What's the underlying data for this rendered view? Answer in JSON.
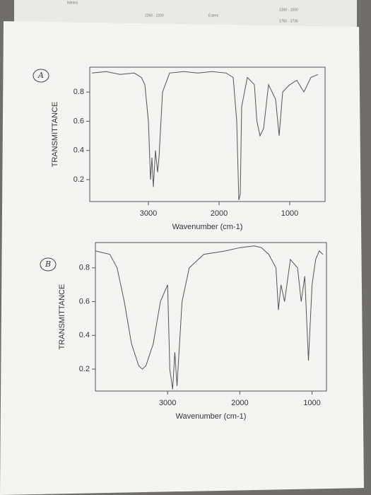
{
  "background_notes": [
    "Nitriles",
    "2260 - 2200",
    "Esters",
    "1750 - 1735",
    "1300 - 1000"
  ],
  "chart_data": [
    {
      "type": "line",
      "panel_label": "A",
      "xlabel": "Wavenumber (cm-1)",
      "ylabel": "TRANSMITTANCE",
      "color": "#555555",
      "x": [
        3800,
        3600,
        3400,
        3200,
        3100,
        3050,
        3000,
        2970,
        2950,
        2930,
        2900,
        2870,
        2850,
        2800,
        2700,
        2500,
        2300,
        2100,
        1900,
        1800,
        1750,
        1720,
        1700,
        1680,
        1600,
        1500,
        1465,
        1420,
        1370,
        1300,
        1250,
        1200,
        1150,
        1100,
        1000,
        900,
        800,
        700,
        600
      ],
      "values": [
        0.93,
        0.94,
        0.92,
        0.93,
        0.9,
        0.85,
        0.6,
        0.2,
        0.35,
        0.15,
        0.4,
        0.25,
        0.35,
        0.8,
        0.93,
        0.94,
        0.93,
        0.94,
        0.93,
        0.9,
        0.6,
        0.06,
        0.1,
        0.7,
        0.9,
        0.85,
        0.6,
        0.5,
        0.55,
        0.85,
        0.8,
        0.75,
        0.5,
        0.8,
        0.85,
        0.88,
        0.8,
        0.9,
        0.92
      ],
      "xlim": [
        3830,
        500
      ],
      "ylim": [
        0.05,
        0.97
      ],
      "xticks": [
        3000,
        2000,
        1000
      ],
      "yticks": [
        0.2,
        0.4,
        0.6,
        0.8
      ]
    },
    {
      "type": "line",
      "panel_label": "B",
      "xlabel": "Wavenumber (cm-1)",
      "ylabel": "TRANSMITTANCE",
      "color": "#555555",
      "x": [
        4000,
        3800,
        3700,
        3600,
        3500,
        3400,
        3350,
        3300,
        3200,
        3100,
        3000,
        2970,
        2930,
        2900,
        2870,
        2800,
        2700,
        2500,
        2200,
        2000,
        1800,
        1700,
        1600,
        1500,
        1465,
        1430,
        1380,
        1300,
        1200,
        1150,
        1100,
        1050,
        1000,
        950,
        900,
        850
      ],
      "values": [
        0.9,
        0.88,
        0.8,
        0.6,
        0.35,
        0.22,
        0.2,
        0.22,
        0.35,
        0.6,
        0.7,
        0.2,
        0.08,
        0.3,
        0.1,
        0.6,
        0.8,
        0.88,
        0.9,
        0.92,
        0.93,
        0.92,
        0.88,
        0.8,
        0.55,
        0.7,
        0.6,
        0.85,
        0.8,
        0.6,
        0.75,
        0.25,
        0.7,
        0.85,
        0.9,
        0.88
      ],
      "xlim": [
        4000,
        800
      ],
      "ylim": [
        0.07,
        0.95
      ],
      "xticks": [
        3000,
        2000,
        1000
      ],
      "yticks": [
        0.2,
        0.4,
        0.6,
        0.8
      ]
    }
  ]
}
